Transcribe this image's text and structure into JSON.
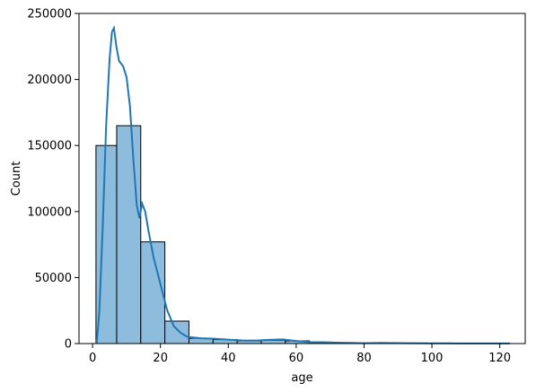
{
  "chart_data": {
    "type": "bar",
    "subtype": "histogram-with-kde",
    "title": "",
    "xlabel": "age",
    "ylabel": "Count",
    "xlim": [
      -4,
      127.5
    ],
    "ylim": [
      0,
      250000
    ],
    "xticks": [
      0,
      20,
      40,
      60,
      80,
      100,
      120
    ],
    "yticks": [
      0,
      50000,
      100000,
      150000,
      200000,
      250000
    ],
    "grid": false,
    "legend": "none",
    "colors": {
      "bar_fill": "#8dbcdc",
      "bar_edge": "#000000",
      "kde_line": "#1f77b4"
    },
    "bins": [
      {
        "x0": 1.0,
        "x1": 7.1,
        "count": 150000
      },
      {
        "x0": 7.1,
        "x1": 14.2,
        "count": 165000
      },
      {
        "x0": 14.2,
        "x1": 21.3,
        "count": 77000
      },
      {
        "x0": 21.3,
        "x1": 28.4,
        "count": 17000
      },
      {
        "x0": 28.4,
        "x1": 35.5,
        "count": 4000
      },
      {
        "x0": 35.5,
        "x1": 42.6,
        "count": 3000
      },
      {
        "x0": 42.6,
        "x1": 49.7,
        "count": 2000
      },
      {
        "x0": 49.7,
        "x1": 56.8,
        "count": 2500
      },
      {
        "x0": 56.8,
        "x1": 63.9,
        "count": 2000
      },
      {
        "x0": 63.9,
        "x1": 71.0,
        "count": 900
      },
      {
        "x0": 71.0,
        "x1": 78.1,
        "count": 500
      },
      {
        "x0": 78.1,
        "x1": 85.2,
        "count": 400
      },
      {
        "x0": 85.2,
        "x1": 92.3,
        "count": 300
      },
      {
        "x0": 92.3,
        "x1": 99.4,
        "count": 250
      },
      {
        "x0": 99.4,
        "x1": 106.5,
        "count": 150
      },
      {
        "x0": 106.5,
        "x1": 113.6,
        "count": 100
      },
      {
        "x0": 113.6,
        "x1": 122.9,
        "count": 80
      }
    ],
    "kde": [
      [
        1.2,
        0
      ],
      [
        2,
        25000
      ],
      [
        3,
        90000
      ],
      [
        4,
        165000
      ],
      [
        5,
        215000
      ],
      [
        5.7,
        236000
      ],
      [
        6.3,
        239000
      ],
      [
        7,
        225000
      ],
      [
        7.8,
        214000
      ],
      [
        9,
        210000
      ],
      [
        10,
        202000
      ],
      [
        11,
        180000
      ],
      [
        12,
        140000
      ],
      [
        13,
        105000
      ],
      [
        13.8,
        95000
      ],
      [
        14.6,
        106000
      ],
      [
        15.5,
        100000
      ],
      [
        16.5,
        85000
      ],
      [
        18,
        65000
      ],
      [
        20,
        45000
      ],
      [
        22,
        25000
      ],
      [
        24,
        13000
      ],
      [
        26,
        8000
      ],
      [
        28,
        5000
      ],
      [
        32,
        4000
      ],
      [
        36,
        3700
      ],
      [
        40,
        3000
      ],
      [
        44,
        2400
      ],
      [
        48,
        2300
      ],
      [
        52,
        2800
      ],
      [
        56,
        3100
      ],
      [
        60,
        2000
      ],
      [
        64,
        1100
      ],
      [
        68,
        1000
      ],
      [
        72,
        650
      ],
      [
        76,
        450
      ],
      [
        80,
        300
      ],
      [
        85,
        500
      ],
      [
        90,
        350
      ],
      [
        95,
        300
      ],
      [
        100,
        200
      ],
      [
        105,
        150
      ],
      [
        110,
        100
      ],
      [
        115,
        100
      ],
      [
        120,
        60
      ],
      [
        123,
        40
      ]
    ]
  }
}
